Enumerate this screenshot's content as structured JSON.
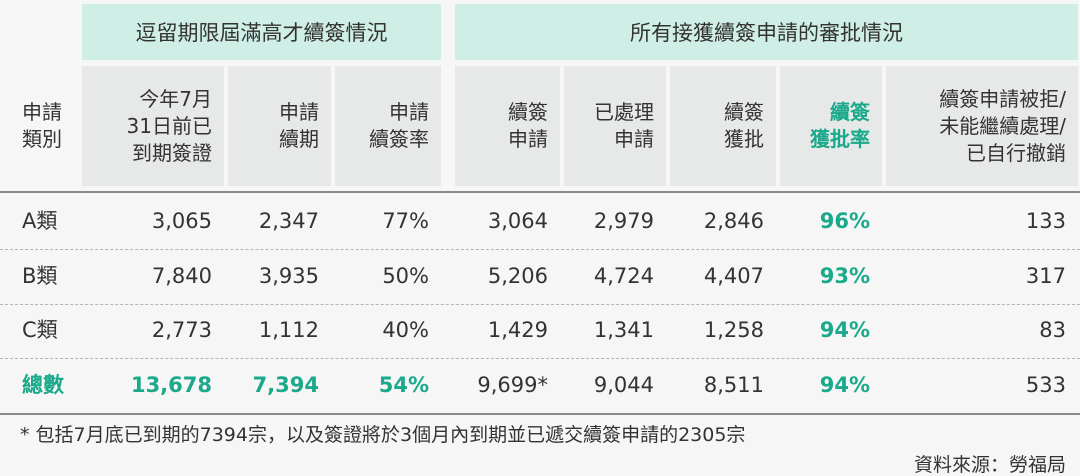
{
  "table": {
    "groups": [
      "逗留期限屆滿高才續簽情況",
      "所有接獲續簽申請的審批情況"
    ],
    "headers": [
      [
        "申請",
        "類別"
      ],
      [
        "今年7月",
        "31日前已",
        "到期簽證"
      ],
      [
        "申請",
        "續期"
      ],
      [
        "申請",
        "續簽率"
      ],
      [
        "續簽",
        "申請"
      ],
      [
        "已處理",
        "申請"
      ],
      [
        "續簽",
        "獲批"
      ],
      [
        "續簽",
        "獲批率"
      ],
      [
        "續簽申請被拒/",
        "未能繼續處理/",
        "已自行撤銷"
      ]
    ],
    "rows": [
      [
        "A類",
        "3,065",
        "2,347",
        "77%",
        "3,064",
        "2,979",
        "2,846",
        "96%",
        "133"
      ],
      [
        "B類",
        "7,840",
        "3,935",
        "50%",
        "5,206",
        "4,724",
        "4,407",
        "93%",
        "317"
      ],
      [
        "C類",
        "2,773",
        "1,112",
        "40%",
        "1,429",
        "1,341",
        "1,258",
        "94%",
        "83"
      ],
      [
        "總數",
        "13,678",
        "7,394",
        "54%",
        "9,699*",
        "9,044",
        "8,511",
        "94%",
        "533"
      ]
    ],
    "footnote": "* 包括7月底已到期的7394宗，以及簽證將於3個月內到期並已遞交續簽申請的2305宗",
    "source": "資料來源：勞福局"
  }
}
